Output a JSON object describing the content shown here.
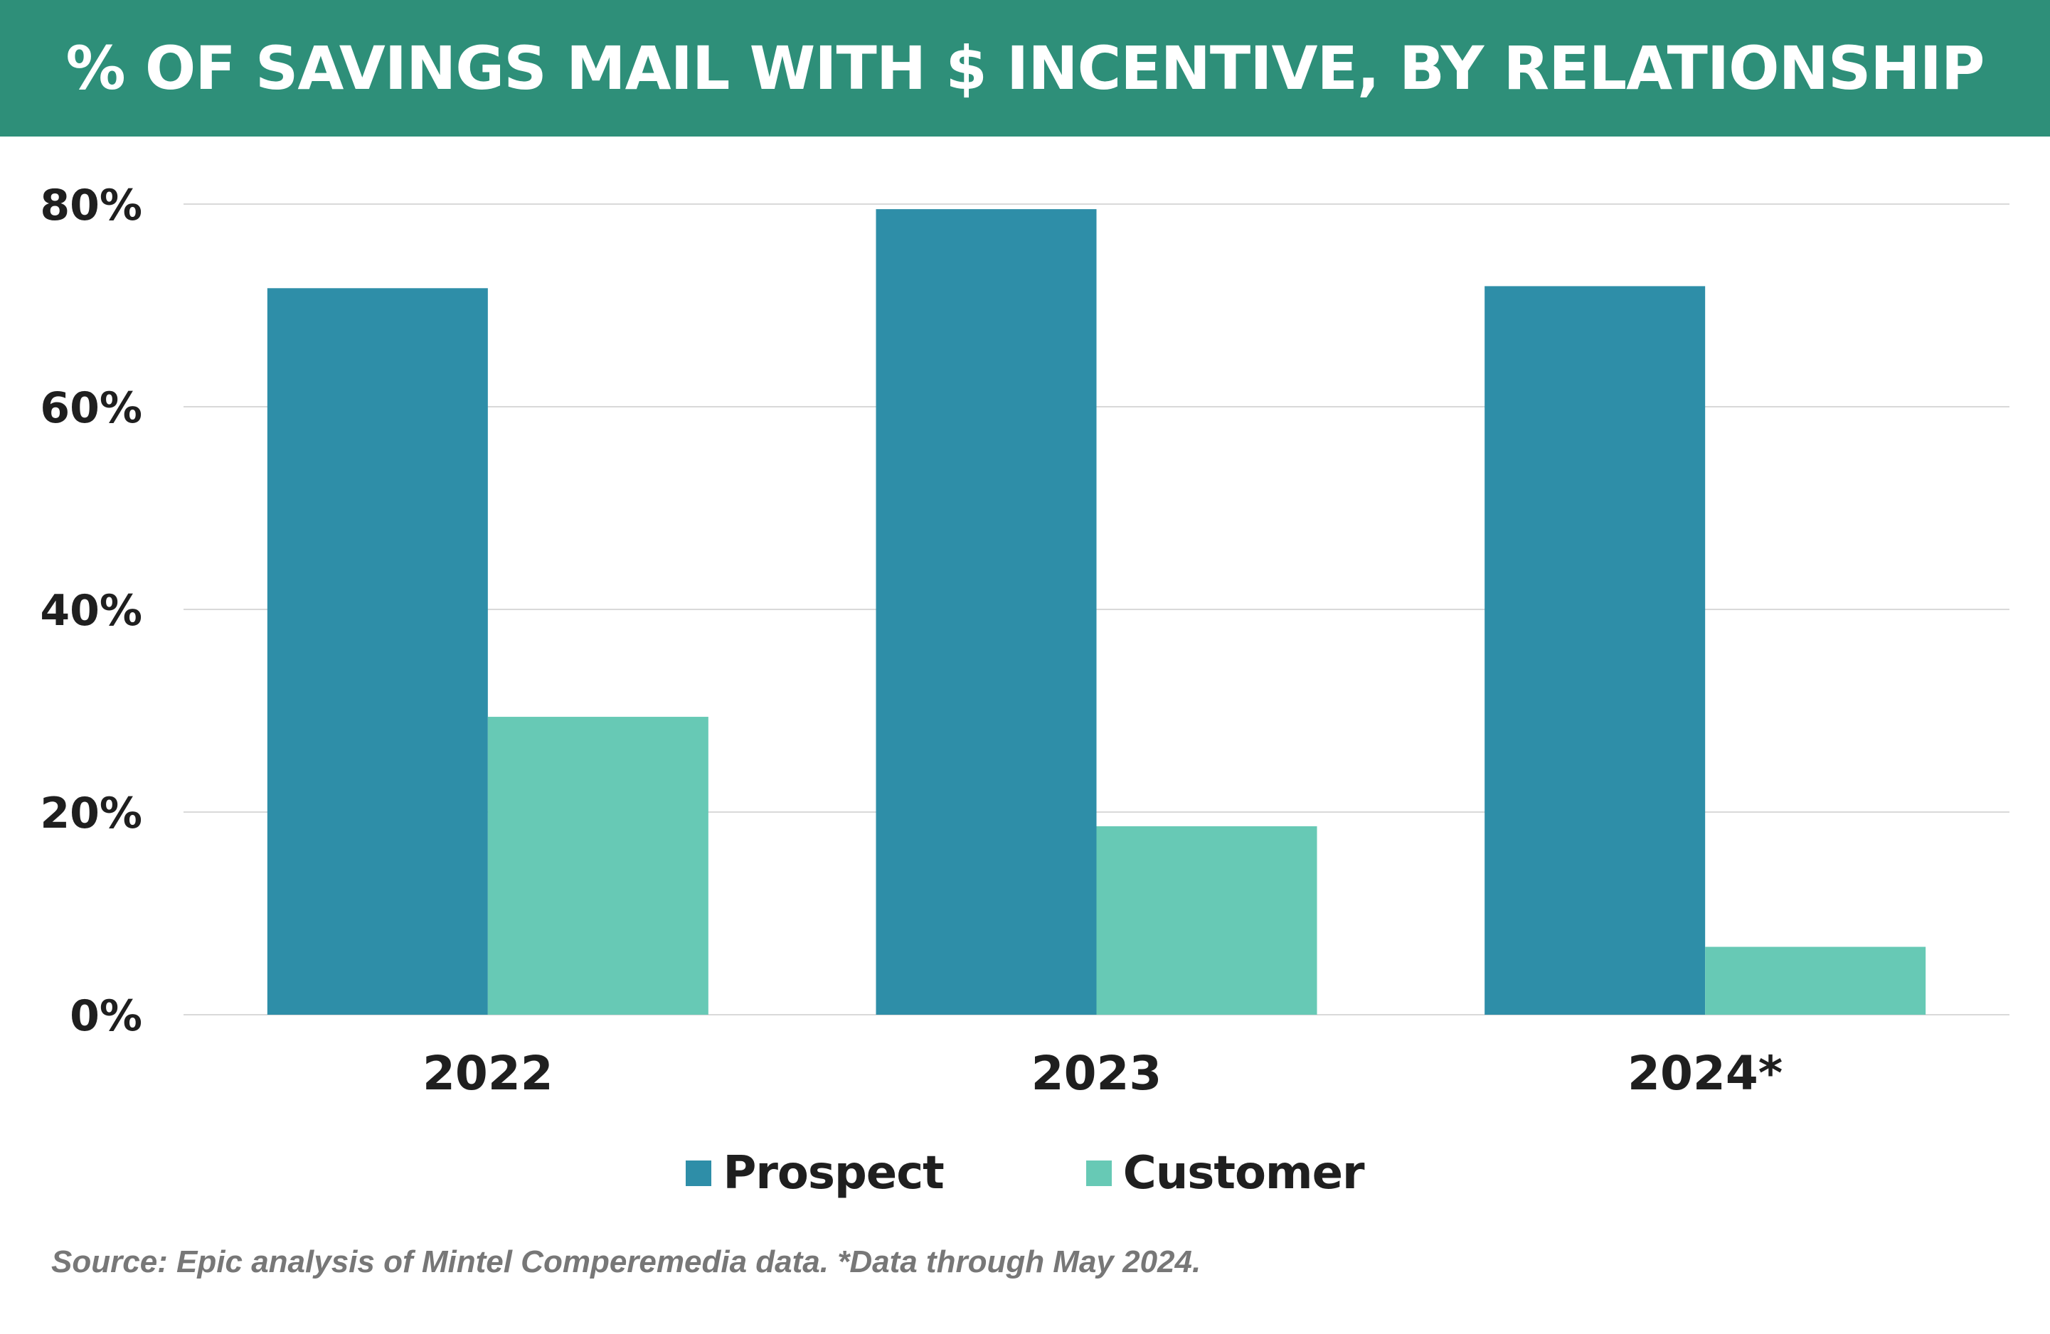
{
  "header": {
    "title": "% OF SAVINGS MAIL WITH $ INCENTIVE, BY RELATIONSHIP"
  },
  "colors": {
    "header_bg": "#2e8f79",
    "prospect": "#2e8ea8",
    "customer": "#67c9b5",
    "grid": "#d9d9d9"
  },
  "chart_data": {
    "type": "bar",
    "title": "% OF SAVINGS MAIL WITH $ INCENTIVE, BY RELATIONSHIP",
    "categories": [
      "2022",
      "2023",
      "2024*"
    ],
    "series": [
      {
        "name": "Prospect",
        "values": [
          71.7,
          79.5,
          71.9
        ]
      },
      {
        "name": "Customer",
        "values": [
          29.4,
          18.6,
          6.7
        ]
      }
    ],
    "ylim": [
      0,
      80
    ],
    "yticks": [
      0,
      20,
      40,
      60,
      80
    ],
    "ytick_labels": [
      "0%",
      "20%",
      "40%",
      "60%",
      "80%"
    ],
    "grid": true,
    "legend_position": "bottom-center"
  },
  "legend": {
    "items": [
      {
        "label": "Prospect"
      },
      {
        "label": "Customer"
      }
    ]
  },
  "footer": {
    "source": "Source: Epic analysis of Mintel Comperemedia data. *Data through May 2024."
  }
}
